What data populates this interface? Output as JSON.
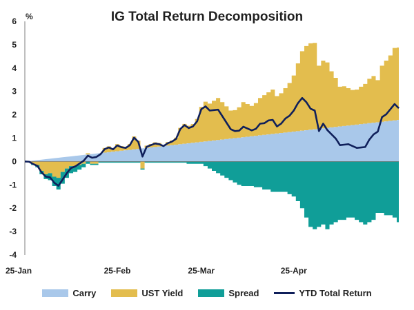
{
  "chart_data": {
    "type": "area",
    "title": "IG Total Return Decomposition",
    "unit_label": "%",
    "ylim": [
      -4,
      6
    ],
    "y_ticks": [
      "6",
      "5",
      "4",
      "3",
      "2",
      "1",
      "0",
      "-1",
      "-2",
      "-3",
      "-4"
    ],
    "x_tick_labels": [
      "25-Jan",
      "25-Feb",
      "25-Mar",
      "25-Apr"
    ],
    "x_tick_index": [
      0,
      22,
      42,
      64
    ],
    "grid": false,
    "legend_position": "bottom",
    "colors": {
      "Carry": "#a9c8ea",
      "UST Yield": "#e3bd4e",
      "Spread": "#109e98",
      "YTD Total Return": "#0f1f5a"
    },
    "series": [
      {
        "name": "Carry",
        "kind": "stacked-area",
        "values": [
          0.0,
          0.02,
          0.04,
          0.06,
          0.08,
          0.1,
          0.12,
          0.14,
          0.16,
          0.18,
          0.2,
          0.22,
          0.24,
          0.26,
          0.28,
          0.3,
          0.32,
          0.34,
          0.36,
          0.38,
          0.4,
          0.42,
          0.44,
          0.46,
          0.48,
          0.5,
          0.52,
          0.54,
          0.56,
          0.58,
          0.6,
          0.62,
          0.64,
          0.66,
          0.68,
          0.7,
          0.72,
          0.74,
          0.76,
          0.78,
          0.8,
          0.82,
          0.84,
          0.86,
          0.88,
          0.9,
          0.92,
          0.94,
          0.96,
          0.98,
          1.0,
          1.02,
          1.04,
          1.06,
          1.08,
          1.1,
          1.12,
          1.14,
          1.16,
          1.18,
          1.2,
          1.22,
          1.24,
          1.26,
          1.28,
          1.3,
          1.32,
          1.34,
          1.36,
          1.38,
          1.4,
          1.42,
          1.44,
          1.46,
          1.48,
          1.5,
          1.52,
          1.54,
          1.56,
          1.58,
          1.6,
          1.62,
          1.64,
          1.66,
          1.68,
          1.7,
          1.72,
          1.74,
          1.76,
          1.78
        ]
      },
      {
        "name": "UST Yield",
        "kind": "stacked-area",
        "values": [
          0.0,
          -0.03,
          -0.1,
          -0.15,
          -0.4,
          -0.55,
          -0.5,
          -0.65,
          -0.7,
          -0.45,
          -0.3,
          -0.2,
          -0.2,
          -0.15,
          -0.1,
          0.05,
          -0.1,
          -0.1,
          0.0,
          0.2,
          0.25,
          0.15,
          0.3,
          0.2,
          0.15,
          0.25,
          0.55,
          0.35,
          -0.3,
          0.1,
          0.15,
          0.2,
          0.15,
          0.05,
          0.15,
          0.2,
          0.3,
          0.7,
          0.85,
          0.75,
          0.8,
          1.0,
          1.5,
          1.7,
          1.6,
          1.7,
          1.8,
          1.6,
          1.4,
          1.2,
          1.2,
          1.3,
          1.5,
          1.4,
          1.3,
          1.4,
          1.6,
          1.7,
          1.8,
          1.9,
          1.6,
          1.7,
          1.9,
          2.1,
          2.4,
          2.9,
          3.4,
          3.6,
          3.7,
          3.7,
          2.7,
          2.9,
          2.8,
          2.4,
          2.1,
          1.7,
          1.7,
          1.6,
          1.5,
          1.5,
          1.6,
          1.7,
          1.9,
          2.0,
          1.8,
          2.4,
          2.6,
          2.8,
          3.1,
          3.1
        ]
      },
      {
        "name": "Spread",
        "kind": "stacked-area",
        "values": [
          0.0,
          0.0,
          -0.05,
          -0.1,
          -0.15,
          -0.2,
          -0.3,
          -0.4,
          -0.5,
          -0.5,
          -0.4,
          -0.3,
          -0.25,
          -0.2,
          -0.15,
          -0.1,
          -0.05,
          -0.05,
          -0.05,
          -0.05,
          -0.05,
          -0.05,
          -0.05,
          -0.05,
          -0.05,
          -0.05,
          -0.05,
          -0.05,
          -0.05,
          -0.05,
          -0.05,
          -0.05,
          -0.05,
          -0.05,
          -0.05,
          -0.05,
          -0.05,
          -0.05,
          -0.05,
          -0.1,
          -0.1,
          -0.1,
          -0.1,
          -0.2,
          -0.3,
          -0.4,
          -0.5,
          -0.6,
          -0.7,
          -0.8,
          -0.9,
          -1.0,
          -1.05,
          -1.05,
          -1.05,
          -1.1,
          -1.1,
          -1.2,
          -1.2,
          -1.3,
          -1.3,
          -1.3,
          -1.3,
          -1.4,
          -1.5,
          -1.7,
          -2.0,
          -2.4,
          -2.8,
          -2.9,
          -2.8,
          -2.7,
          -2.9,
          -2.7,
          -2.6,
          -2.5,
          -2.5,
          -2.4,
          -2.4,
          -2.5,
          -2.6,
          -2.7,
          -2.6,
          -2.5,
          -2.2,
          -2.2,
          -2.3,
          -2.3,
          -2.4,
          -2.6
        ]
      },
      {
        "name": "YTD Total Return",
        "kind": "line",
        "values": [
          0.0,
          -0.01,
          -0.11,
          -0.19,
          -0.47,
          -0.65,
          -0.68,
          -0.91,
          -1.04,
          -0.77,
          -0.5,
          -0.28,
          -0.21,
          -0.09,
          0.03,
          0.25,
          0.16,
          0.19,
          0.31,
          0.53,
          0.6,
          0.52,
          0.69,
          0.61,
          0.58,
          0.7,
          1.02,
          0.84,
          0.21,
          0.63,
          0.7,
          0.77,
          0.74,
          0.66,
          0.78,
          0.85,
          0.97,
          1.39,
          1.56,
          1.43,
          1.5,
          1.72,
          2.24,
          2.36,
          2.18,
          2.2,
          2.22,
          1.94,
          1.66,
          1.38,
          1.3,
          1.32,
          1.49,
          1.41,
          1.33,
          1.4,
          1.62,
          1.64,
          1.76,
          1.78,
          1.5,
          1.62,
          1.84,
          1.96,
          2.18,
          2.5,
          2.72,
          2.54,
          2.26,
          2.18,
          1.3,
          1.62,
          1.34,
          1.16,
          0.98,
          0.7,
          0.72,
          0.74,
          0.66,
          0.58,
          0.6,
          0.62,
          0.94,
          1.16,
          1.28,
          1.9,
          2.02,
          2.24,
          2.46,
          2.28
        ]
      }
    ]
  },
  "legend": {
    "carry": "Carry",
    "ust_yield": "UST Yield",
    "spread": "Spread",
    "ytd_total_return": "YTD Total Return"
  }
}
